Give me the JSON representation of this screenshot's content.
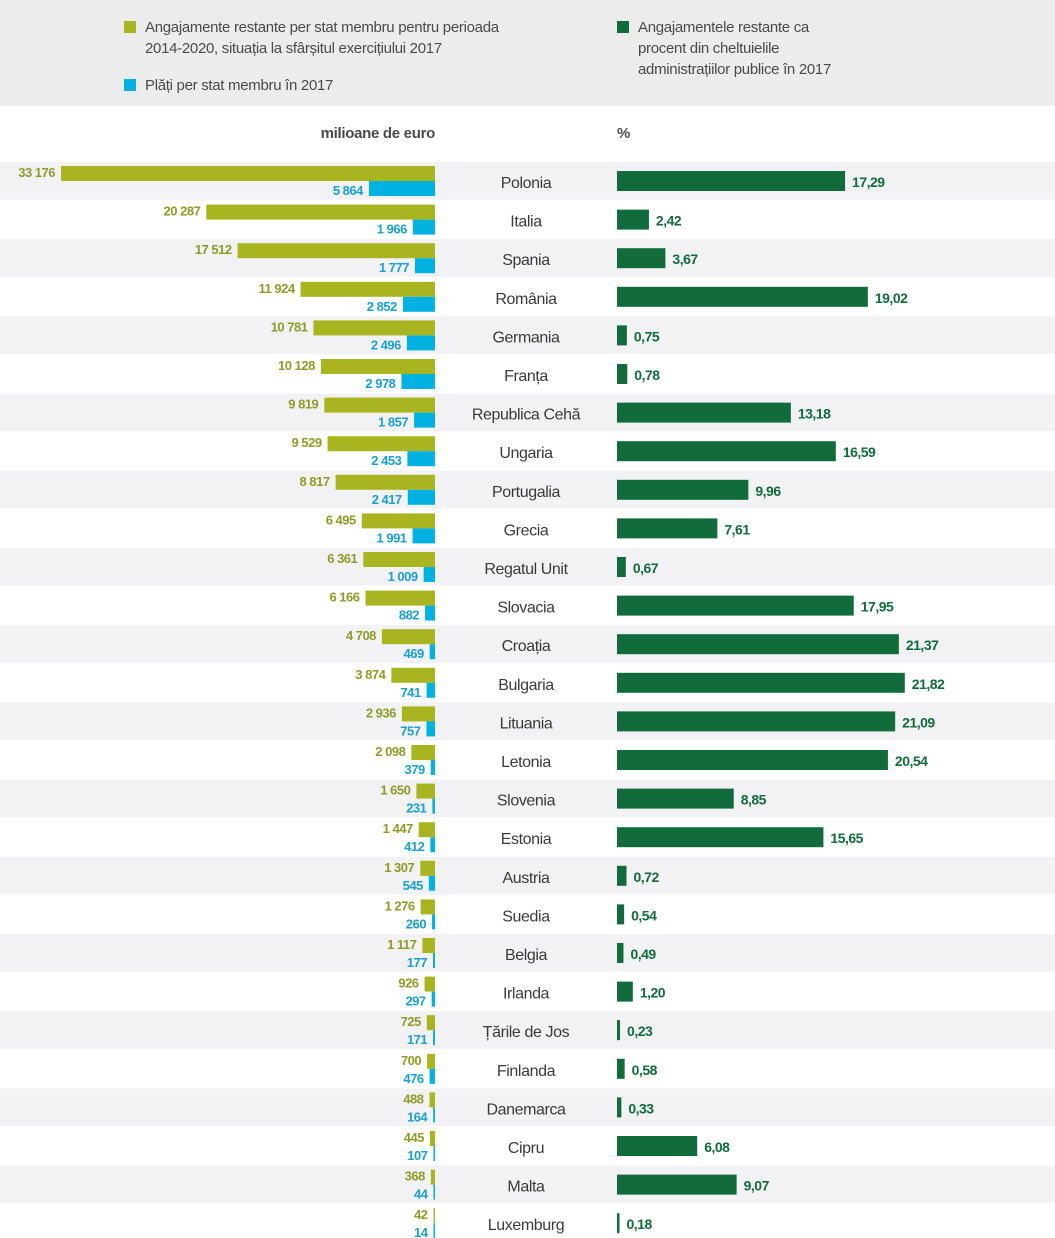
{
  "legend": {
    "items": [
      {
        "label": "Angajamente restante per stat membru pentru perioada\n2014-2020, situația la sfârșitul exercițiului 2017",
        "color": "#a8b520"
      },
      {
        "label": "Plăți per stat membru în 2017",
        "color": "#00b1e1"
      },
      {
        "label": "Angajamentele restante ca\nprocent din cheltuielile\nadministrațiilor publice în 2017",
        "color": "#116b3a"
      }
    ]
  },
  "units": {
    "left": "milioane de euro",
    "right": "%"
  },
  "colors": {
    "commitments": "#a8b520",
    "commitments_label": "#8f9a2a",
    "payments": "#00b1e1",
    "payments_label": "#1a9fcf",
    "percent": "#116b3a",
    "row_alt": "#f2f2f4",
    "country_text": "#3a3a3a"
  },
  "chart_data": [
    {
      "type": "bar",
      "orientation": "horizontal-left",
      "title": "",
      "xlabel": "milioane de euro",
      "ylabel": "",
      "categories": [
        "Polonia",
        "Italia",
        "Spania",
        "România",
        "Germania",
        "Franța",
        "Republica Cehă",
        "Ungaria",
        "Portugalia",
        "Grecia",
        "Regatul Unit",
        "Slovacia",
        "Croația",
        "Bulgaria",
        "Lituania",
        "Letonia",
        "Slovenia",
        "Estonia",
        "Austria",
        "Suedia",
        "Belgia",
        "Irlanda",
        "Țările de Jos",
        "Finlanda",
        "Danemarca",
        "Cipru",
        "Malta",
        "Luxemburg"
      ],
      "series": [
        {
          "name": "Angajamente restante per stat membru pentru perioada 2014-2020, situația la sfârșitul exercițiului 2017",
          "values": [
            33176,
            20287,
            17512,
            11924,
            10781,
            10128,
            9819,
            9529,
            8817,
            6495,
            6361,
            6166,
            4708,
            3874,
            2936,
            2098,
            1650,
            1447,
            1307,
            1276,
            1117,
            926,
            725,
            700,
            488,
            445,
            368,
            42
          ],
          "labels": [
            "33 176",
            "20 287",
            "17 512",
            "11 924",
            "10 781",
            "10 128",
            "9 819",
            "9 529",
            "8 817",
            "6 495",
            "6 361",
            "6 166",
            "4 708",
            "3 874",
            "2 936",
            "2 098",
            "1 650",
            "1 447",
            "1 307",
            "1 276",
            "1 117",
            "926",
            "725",
            "700",
            "488",
            "445",
            "368",
            "42"
          ]
        },
        {
          "name": "Plăți per stat membru în 2017",
          "values": [
            5864,
            1966,
            1777,
            2852,
            2496,
            2978,
            1857,
            2453,
            2417,
            1991,
            1009,
            882,
            469,
            741,
            757,
            379,
            231,
            412,
            545,
            260,
            177,
            297,
            171,
            476,
            164,
            107,
            44,
            14
          ],
          "labels": [
            "5 864",
            "1 966",
            "1 777",
            "2 852",
            "2 496",
            "2 978",
            "1 857",
            "2 453",
            "2 417",
            "1 991",
            "1 009",
            "882",
            "469",
            "741",
            "757",
            "379",
            "231",
            "412",
            "545",
            "260",
            "177",
            "297",
            "171",
            "476",
            "164",
            "107",
            "44",
            "14"
          ]
        }
      ],
      "xlim": [
        0,
        33176
      ],
      "grid": false,
      "legend_position": "top"
    },
    {
      "type": "bar",
      "orientation": "horizontal-right",
      "title": "",
      "xlabel": "%",
      "ylabel": "",
      "categories": [
        "Polonia",
        "Italia",
        "Spania",
        "România",
        "Germania",
        "Franța",
        "Republica Cehă",
        "Ungaria",
        "Portugalia",
        "Grecia",
        "Regatul Unit",
        "Slovacia",
        "Croația",
        "Bulgaria",
        "Lituania",
        "Letonia",
        "Slovenia",
        "Estonia",
        "Austria",
        "Suedia",
        "Belgia",
        "Irlanda",
        "Țările de Jos",
        "Finlanda",
        "Danemarca",
        "Cipru",
        "Malta",
        "Luxemburg"
      ],
      "series": [
        {
          "name": "Angajamentele restante ca procent din cheltuielile administrațiilor publice în 2017",
          "values": [
            17.29,
            2.42,
            3.67,
            19.02,
            0.75,
            0.78,
            13.18,
            16.59,
            9.96,
            7.61,
            0.67,
            17.95,
            21.37,
            21.82,
            21.09,
            20.54,
            8.85,
            15.65,
            0.72,
            0.54,
            0.49,
            1.2,
            0.23,
            0.58,
            0.33,
            6.08,
            9.07,
            0.18
          ],
          "labels": [
            "17,29",
            "2,42",
            "3,67",
            "19,02",
            "0,75",
            "0,78",
            "13,18",
            "16,59",
            "9,96",
            "7,61",
            "0,67",
            "17,95",
            "21,37",
            "21,82",
            "21,09",
            "20,54",
            "8,85",
            "15,65",
            "0,72",
            "0,54",
            "0,49",
            "1,20",
            "0,23",
            "0,58",
            "0,33",
            "6,08",
            "9,07",
            "0,18"
          ]
        }
      ],
      "xlim": [
        0,
        21.82
      ],
      "grid": false,
      "legend_position": "top"
    }
  ]
}
